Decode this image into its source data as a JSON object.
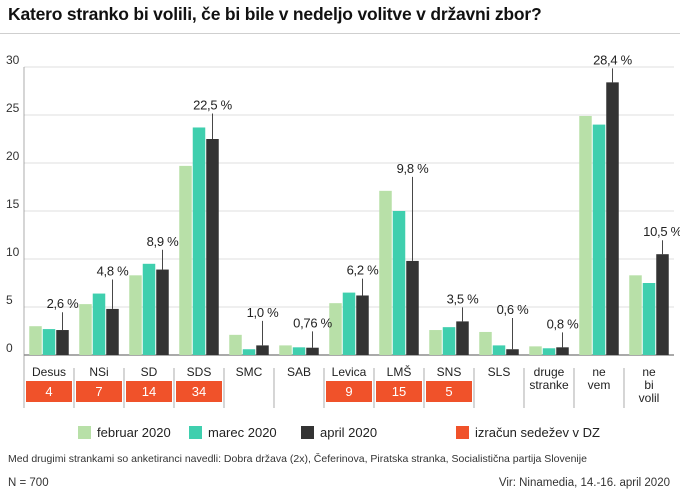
{
  "title": "Katero stranko bi volili, če bi bile v nedeljo volitve v državni zbor?",
  "chart_data": {
    "type": "bar",
    "categories": [
      "Desus",
      "NSi",
      "SD",
      "SDS",
      "SMC",
      "SAB",
      "Levica",
      "LMŠ",
      "SNS",
      "SLS",
      "druge stranke",
      "ne vem",
      "ne bi volil"
    ],
    "series": [
      {
        "name": "februar 2020",
        "color": "#b8e0a8",
        "values": [
          3.0,
          5.3,
          8.3,
          19.7,
          2.1,
          1.0,
          5.4,
          17.1,
          2.6,
          2.4,
          0.9,
          24.9,
          8.3
        ]
      },
      {
        "name": "marec 2020",
        "color": "#3fcfae",
        "values": [
          2.7,
          6.4,
          9.5,
          23.7,
          0.6,
          0.8,
          6.5,
          15.0,
          2.9,
          1.0,
          0.7,
          24.0,
          7.5
        ]
      },
      {
        "name": "april 2020",
        "color": "#333333",
        "values": [
          2.6,
          4.8,
          8.9,
          22.5,
          1.0,
          0.76,
          6.2,
          9.8,
          3.5,
          0.6,
          0.8,
          28.4,
          10.5
        ]
      }
    ],
    "data_labels": [
      "2,6 %",
      "4,8 %",
      "8,9 %",
      "22,5 %",
      "1,0 %",
      "0,76 %",
      "6,2 %",
      "9,8 %",
      "3,5 %",
      "0,6 %",
      "0,8 %",
      "28,4 %",
      "10,5 %"
    ],
    "yticks": [
      "0",
      "5",
      "10",
      "15",
      "20",
      "25",
      "30"
    ],
    "ylim": [
      0,
      30
    ],
    "seats": [
      "4",
      "7",
      "14",
      "34",
      "",
      "",
      "9",
      "15",
      "5",
      "",
      "",
      "",
      ""
    ],
    "seats_color": "#f0522a",
    "seats_label": "izračun sedežev v DZ",
    "grid": true
  },
  "note": "Med drugimi strankami so anketiranci navedli: Dobra država (2x), Čeferinova, Piratska stranka, Socialistična partija Slovenije",
  "sample": "N = 700",
  "source": "Vir: Ninamedia, 14.-16. april 2020"
}
